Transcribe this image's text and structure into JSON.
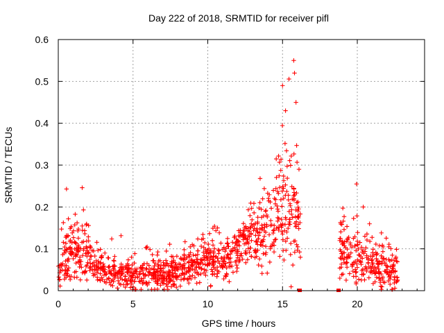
{
  "chart_data": {
    "type": "scatter",
    "title": "Day 222 of 2018, SRMTID for receiver pifl",
    "xlabel": "GPS time / hours",
    "ylabel": "SRMTID / TECUs",
    "xlim": [
      0,
      24.5
    ],
    "ylim": [
      0,
      0.6
    ],
    "x_ticks": [
      0,
      5,
      10,
      15,
      20
    ],
    "x_tick_labels": [
      "0",
      "5",
      "10",
      "15",
      "20"
    ],
    "y_ticks": [
      0,
      0.1,
      0.2,
      0.3,
      0.4,
      0.5,
      0.6
    ],
    "y_tick_labels": [
      "0",
      "0.1",
      "0.2",
      "0.3",
      "0.4",
      "0.5",
      "0.6"
    ],
    "grid": true,
    "color": "#ff0000",
    "marker": "plus",
    "data_gap_hours": [
      16.2,
      18.8
    ],
    "zero_markers": [
      {
        "x": 16.15,
        "y": 0
      },
      {
        "x": 18.75,
        "y": 0
      }
    ],
    "series": [
      {
        "name": "pifl",
        "envelope": [
          {
            "x": 0.0,
            "base": 0.035,
            "spread": 0.03,
            "peak": 0.09
          },
          {
            "x": 0.5,
            "base": 0.09,
            "spread": 0.07,
            "peak": 0.245
          },
          {
            "x": 1.0,
            "base": 0.09,
            "spread": 0.06,
            "peak": 0.2
          },
          {
            "x": 1.6,
            "base": 0.1,
            "spread": 0.06,
            "peak": 0.245
          },
          {
            "x": 2.0,
            "base": 0.08,
            "spread": 0.05,
            "peak": 0.165
          },
          {
            "x": 3.0,
            "base": 0.05,
            "spread": 0.04,
            "peak": 0.14
          },
          {
            "x": 4.0,
            "base": 0.04,
            "spread": 0.03,
            "peak": 0.14
          },
          {
            "x": 5.0,
            "base": 0.035,
            "spread": 0.03,
            "peak": 0.1
          },
          {
            "x": 6.0,
            "base": 0.04,
            "spread": 0.03,
            "peak": 0.11
          },
          {
            "x": 7.0,
            "base": 0.04,
            "spread": 0.03,
            "peak": 0.12
          },
          {
            "x": 8.0,
            "base": 0.045,
            "spread": 0.03,
            "peak": 0.12
          },
          {
            "x": 9.0,
            "base": 0.06,
            "spread": 0.04,
            "peak": 0.13
          },
          {
            "x": 10.0,
            "base": 0.07,
            "spread": 0.04,
            "peak": 0.15
          },
          {
            "x": 11.0,
            "base": 0.075,
            "spread": 0.04,
            "peak": 0.16
          },
          {
            "x": 12.0,
            "base": 0.09,
            "spread": 0.05,
            "peak": 0.17
          },
          {
            "x": 12.7,
            "base": 0.12,
            "spread": 0.06,
            "peak": 0.22
          },
          {
            "x": 13.5,
            "base": 0.14,
            "spread": 0.07,
            "peak": 0.27
          },
          {
            "x": 14.2,
            "base": 0.15,
            "spread": 0.08,
            "peak": 0.27
          },
          {
            "x": 14.8,
            "base": 0.2,
            "spread": 0.12,
            "peak": 0.43
          },
          {
            "x": 15.0,
            "base": 0.22,
            "spread": 0.14,
            "peak": 0.49
          },
          {
            "x": 15.5,
            "base": 0.2,
            "spread": 0.14,
            "peak": 0.55
          },
          {
            "x": 16.0,
            "base": 0.17,
            "spread": 0.12,
            "peak": 0.34
          },
          {
            "x": 16.1,
            "base": 0.15,
            "spread": 0.1,
            "peak": 0.29
          },
          {
            "x": 18.9,
            "base": 0.1,
            "spread": 0.06,
            "peak": 0.22
          },
          {
            "x": 19.5,
            "base": 0.09,
            "spread": 0.06,
            "peak": 0.2
          },
          {
            "x": 20.0,
            "base": 0.08,
            "spread": 0.06,
            "peak": 0.26
          },
          {
            "x": 20.5,
            "base": 0.07,
            "spread": 0.05,
            "peak": 0.2
          },
          {
            "x": 21.0,
            "base": 0.06,
            "spread": 0.04,
            "peak": 0.2
          },
          {
            "x": 22.0,
            "base": 0.05,
            "spread": 0.04,
            "peak": 0.13
          },
          {
            "x": 22.7,
            "base": 0.04,
            "spread": 0.03,
            "peak": 0.11
          }
        ],
        "notable_points": [
          {
            "x": 0.55,
            "y": 0.243
          },
          {
            "x": 1.6,
            "y": 0.246
          },
          {
            "x": 13.5,
            "y": 0.268
          },
          {
            "x": 15.0,
            "y": 0.49
          },
          {
            "x": 15.2,
            "y": 0.43
          },
          {
            "x": 15.75,
            "y": 0.55
          },
          {
            "x": 15.8,
            "y": 0.52
          },
          {
            "x": 15.9,
            "y": 0.45
          },
          {
            "x": 16.1,
            "y": 0.29
          },
          {
            "x": 19.95,
            "y": 0.255
          },
          {
            "x": 20.4,
            "y": 0.2
          }
        ]
      }
    ]
  }
}
